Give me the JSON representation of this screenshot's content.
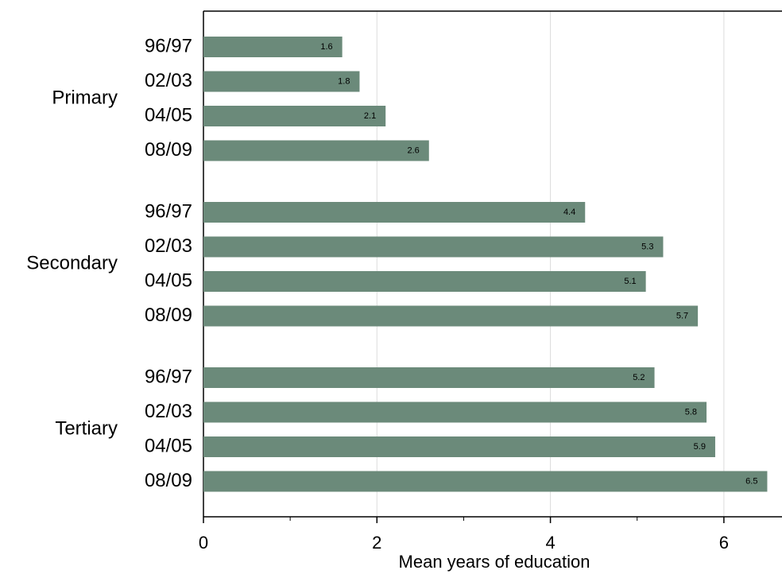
{
  "chart_data": {
    "type": "grouped-hbar",
    "x_label": "Mean years of education",
    "color": "#6b8a7a",
    "groups": [
      {
        "name": "Primary",
        "categories": [
          "96/97",
          "02/03",
          "04/05",
          "08/09"
        ],
        "values": [
          1.6,
          1.8,
          2.1,
          2.6
        ]
      },
      {
        "name": "Secondary",
        "categories": [
          "96/97",
          "02/03",
          "04/05",
          "08/09"
        ],
        "values": [
          4.4,
          5.3,
          5.1,
          5.7
        ]
      },
      {
        "name": "Tertiary",
        "categories": [
          "96/97",
          "02/03",
          "04/05",
          "08/09"
        ],
        "values": [
          5.2,
          5.8,
          5.9,
          6.5
        ]
      }
    ],
    "xlim": [
      0,
      6.67
    ],
    "xticks": [
      0,
      2,
      4,
      6
    ],
    "xminorticks": [
      1,
      3,
      5
    ],
    "grid": true
  }
}
